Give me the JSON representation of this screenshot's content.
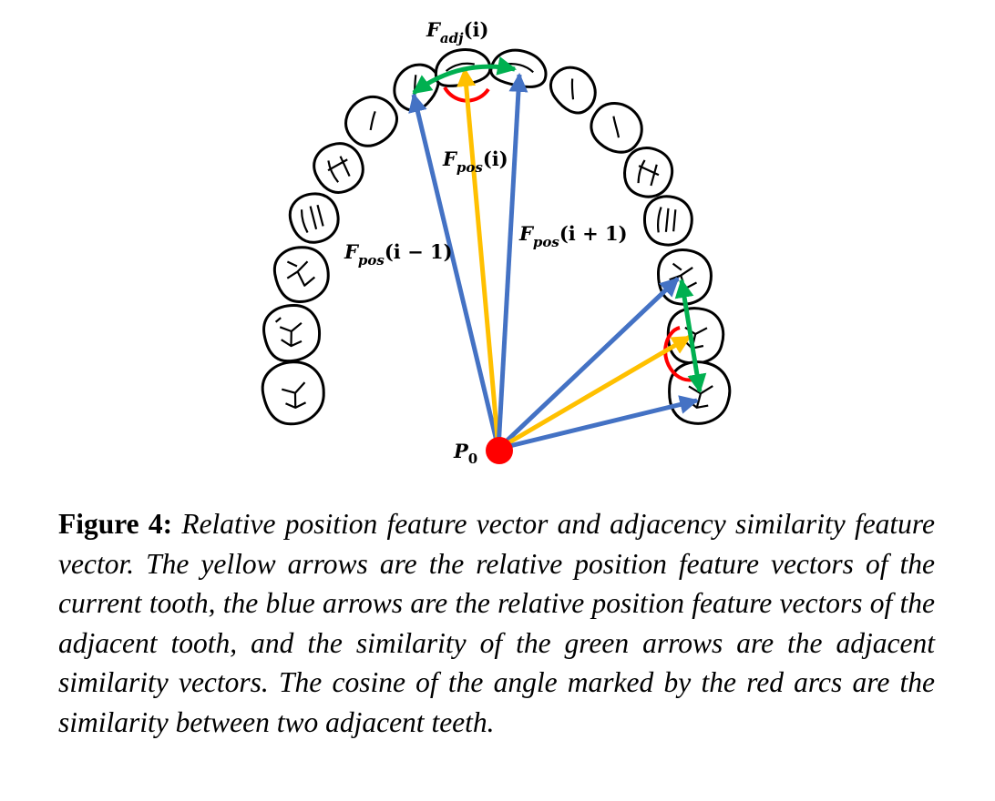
{
  "figure": {
    "colors": {
      "blue": "#4472C4",
      "yellow": "#FFC000",
      "green": "#00B050",
      "red": "#FF0000",
      "outline": "#000000"
    },
    "labels": {
      "f_adj": {
        "main": "F",
        "sub": "adj",
        "arg": "(i)"
      },
      "f_pos_i": {
        "main": "F",
        "sub": "pos",
        "arg": "(i)"
      },
      "f_pos_im1": {
        "main": "F",
        "sub": "pos",
        "arg": "(i − 1)"
      },
      "f_pos_ip1": {
        "main": "F",
        "sub": "pos",
        "arg": "(i + 1)"
      },
      "p0": {
        "main": "P",
        "sub": "0"
      }
    }
  },
  "caption": {
    "label": "Figure 4:",
    "text": "Relative position feature vector and adjacency similarity feature vector. The yellow arrows are the relative position feature vectors of the current tooth, the blue arrows are the relative position feature vectors of the adjacent tooth, and the similarity of the green arrows are the adjacent similarity vectors. The cosine of the angle marked by the red arcs are the similarity between two adjacent teeth."
  }
}
